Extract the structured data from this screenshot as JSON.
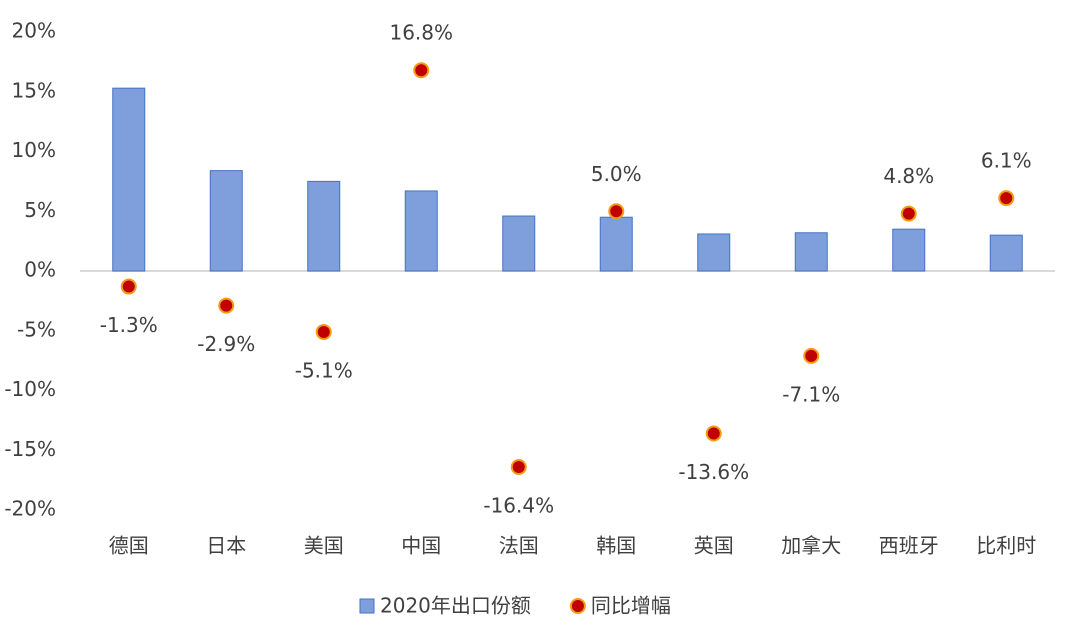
{
  "chart_data": {
    "type": "bar",
    "categories": [
      "德国",
      "日本",
      "美国",
      "中国",
      "法国",
      "韩国",
      "英国",
      "加拿大",
      "西班牙",
      "比利时"
    ],
    "series": [
      {
        "name": "2020年出口份额",
        "type": "bar",
        "color": "#7f9fdc",
        "values": [
          15.3,
          8.4,
          7.5,
          6.7,
          4.6,
          4.5,
          3.1,
          3.2,
          3.5,
          3.0
        ]
      },
      {
        "name": "同比增幅",
        "type": "scatter",
        "color": "#c00000",
        "values": [
          -1.3,
          -2.9,
          -5.1,
          16.8,
          -16.4,
          5.0,
          -13.6,
          -7.1,
          4.8,
          6.1
        ],
        "value_labels": [
          "-1.3%",
          "-2.9%",
          "-5.1%",
          "16.8%",
          "-16.4%",
          "5.0%",
          "-13.6%",
          "-7.1%",
          "4.8%",
          "6.1%"
        ]
      }
    ],
    "ylim": [
      -20,
      20
    ],
    "yticks": [
      {
        "value": -20,
        "label": "-20%"
      },
      {
        "value": -15,
        "label": "-15%"
      },
      {
        "value": -10,
        "label": "-10%"
      },
      {
        "value": -5,
        "label": "-5%"
      },
      {
        "value": 0,
        "label": "0%"
      },
      {
        "value": 5,
        "label": "5%"
      },
      {
        "value": 10,
        "label": "10%"
      },
      {
        "value": 15,
        "label": "15%"
      },
      {
        "value": 20,
        "label": "20%"
      }
    ],
    "legend": "bottom"
  }
}
